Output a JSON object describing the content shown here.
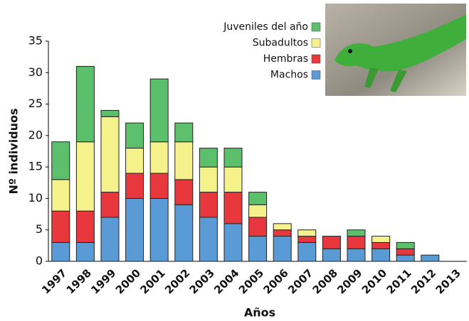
{
  "chart_data": {
    "type": "stacked_bar",
    "x_label": "Años",
    "y_label": "Nº individuos",
    "categories": [
      "1997",
      "1998",
      "1999",
      "2000",
      "2001",
      "2002",
      "2003",
      "2004",
      "2005",
      "2006",
      "2007",
      "2008",
      "2009",
      "2010",
      "2011",
      "2012",
      "2013"
    ],
    "series": [
      {
        "name": "Machos",
        "color": "#5b9bd5",
        "values": [
          3,
          3,
          7,
          10,
          10,
          9,
          7,
          6,
          4,
          4,
          3,
          2,
          2,
          2,
          1,
          1,
          0
        ]
      },
      {
        "name": "Hembras",
        "color": "#e8383d",
        "values": [
          5,
          5,
          4,
          4,
          4,
          4,
          4,
          5,
          3,
          1,
          1,
          2,
          2,
          1,
          1,
          0,
          0
        ]
      },
      {
        "name": "Subadultos",
        "color": "#f5f28c",
        "values": [
          5,
          11,
          12,
          4,
          5,
          6,
          4,
          4,
          2,
          1,
          1,
          0,
          0,
          1,
          0,
          0,
          0
        ]
      },
      {
        "name": "Juveniles del año",
        "color": "#5cbf6b",
        "values": [
          6,
          12,
          1,
          4,
          10,
          3,
          3,
          3,
          2,
          0,
          0,
          0,
          1,
          0,
          1,
          0,
          0
        ]
      }
    ],
    "ylim": [
      0,
      35
    ],
    "yticks": [
      0,
      5,
      10,
      15,
      20,
      25,
      30,
      35
    ],
    "grid": false
  }
}
